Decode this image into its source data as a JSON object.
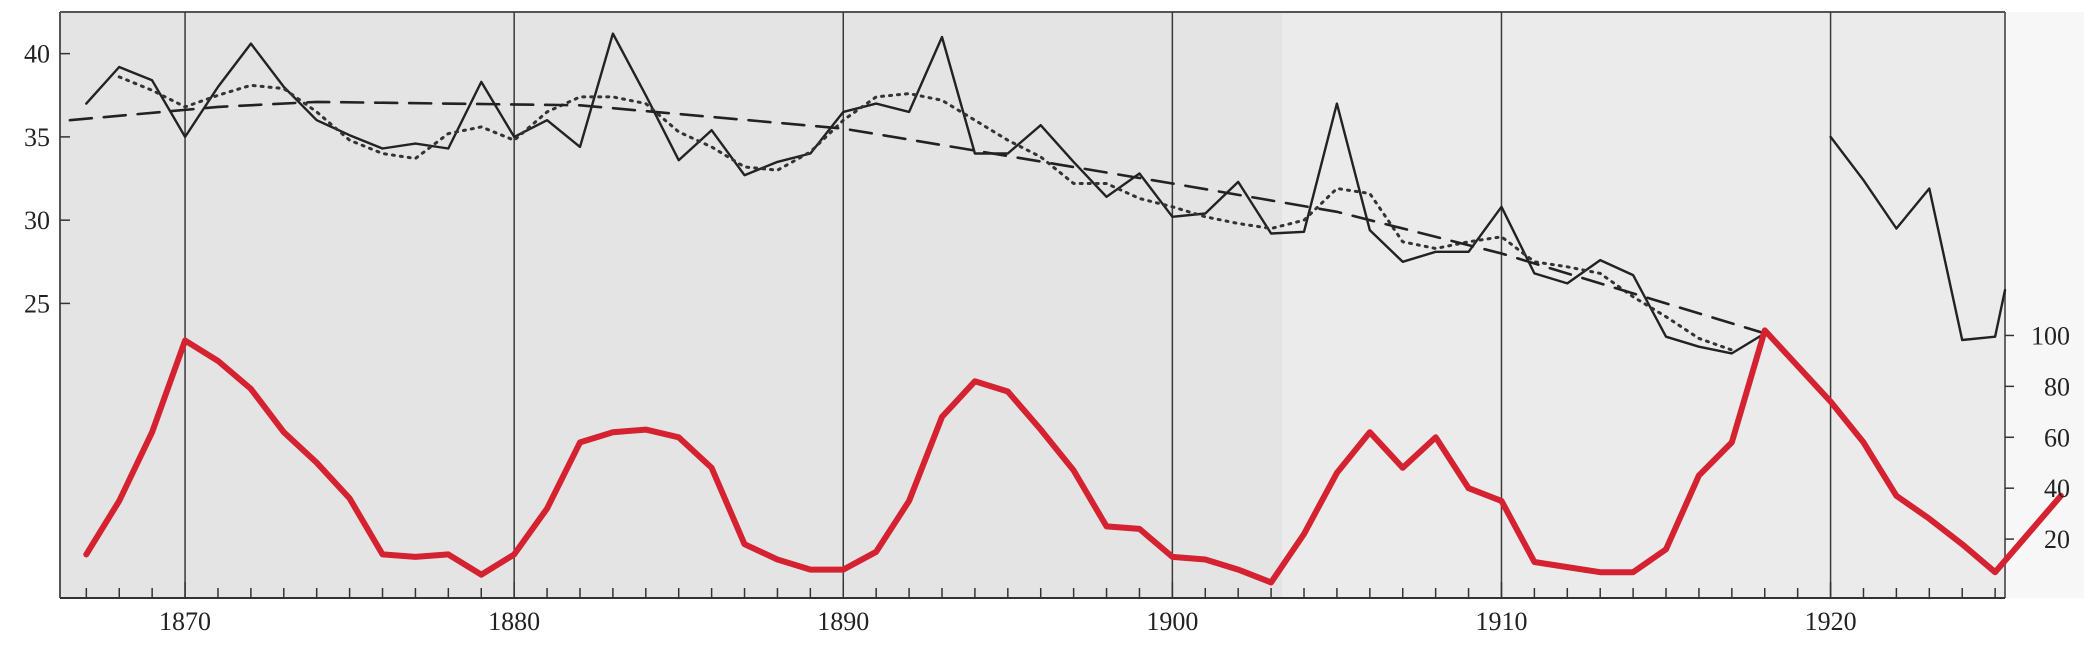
{
  "chart_data": {
    "type": "line",
    "title": "",
    "xlabel": "",
    "ylabel": "",
    "xlim": [
      1866.2,
      1925.3
    ],
    "grid": "vertical lines every 10 years",
    "x_ticks": [
      "1870",
      "1880",
      "1890",
      "1900",
      "1910",
      "1920"
    ],
    "upper_panel": {
      "ylim": [
        19.5,
        42.5
      ],
      "y_ticks": [
        "25",
        "30",
        "35",
        "40"
      ],
      "series": [
        {
          "style": "solid",
          "color": "#222222",
          "segments": [
            [
              [
                1867,
                37
              ],
              [
                1868,
                39.2
              ],
              [
                1869,
                38.4
              ],
              [
                1870,
                35
              ],
              [
                1871,
                38
              ],
              [
                1872,
                40.6
              ],
              [
                1873,
                38
              ],
              [
                1874,
                36
              ],
              [
                1875,
                35.1
              ],
              [
                1876,
                34.3
              ],
              [
                1877,
                34.6
              ],
              [
                1878,
                34.3
              ],
              [
                1879,
                38.3
              ],
              [
                1880,
                35
              ],
              [
                1881,
                36
              ],
              [
                1882,
                34.4
              ],
              [
                1883,
                41.2
              ],
              [
                1884,
                37.5
              ],
              [
                1885,
                33.6
              ],
              [
                1886,
                35.4
              ],
              [
                1887,
                32.7
              ],
              [
                1888,
                33.5
              ],
              [
                1889,
                34
              ],
              [
                1890,
                36.5
              ],
              [
                1891,
                37
              ],
              [
                1892,
                36.5
              ],
              [
                1893,
                41
              ],
              [
                1894,
                34
              ],
              [
                1895,
                34
              ],
              [
                1896,
                35.7
              ],
              [
                1897,
                33.5
              ],
              [
                1898,
                31.4
              ],
              [
                1899,
                32.8
              ],
              [
                1900,
                30.2
              ],
              [
                1901,
                30.4
              ],
              [
                1902,
                32.3
              ],
              [
                1903,
                29.2
              ],
              [
                1904,
                29.3
              ],
              [
                1905,
                37
              ],
              [
                1906,
                29.4
              ],
              [
                1907,
                27.5
              ],
              [
                1908,
                28.1
              ],
              [
                1909,
                28.1
              ],
              [
                1910,
                30.8
              ],
              [
                1911,
                26.8
              ],
              [
                1912,
                26.2
              ],
              [
                1913,
                27.6
              ],
              [
                1914,
                26.7
              ],
              [
                1915,
                23
              ],
              [
                1916,
                22.4
              ],
              [
                1917,
                22
              ],
              [
                1918,
                23.2
              ]
            ],
            [
              [
                1920,
                35
              ],
              [
                1921,
                32.4
              ],
              [
                1922,
                29.5
              ],
              [
                1923,
                31.9
              ],
              [
                1924,
                22.8
              ],
              [
                1925,
                23
              ],
              [
                1925.3,
                25.8
              ]
            ]
          ]
        },
        {
          "style": "dotted",
          "color": "#333333",
          "segments": [
            [
              [
                1868,
                38.6
              ],
              [
                1869,
                37.8
              ],
              [
                1870,
                36.8
              ],
              [
                1871,
                37.5
              ],
              [
                1872,
                38.1
              ],
              [
                1873,
                37.9
              ],
              [
                1874,
                36.5
              ],
              [
                1875,
                34.8
              ],
              [
                1876,
                34
              ],
              [
                1877,
                33.7
              ],
              [
                1878,
                35.2
              ],
              [
                1879,
                35.6
              ],
              [
                1880,
                34.8
              ],
              [
                1881,
                36.5
              ],
              [
                1882,
                37.4
              ],
              [
                1883,
                37.4
              ],
              [
                1884,
                37
              ],
              [
                1885,
                35.3
              ],
              [
                1886,
                34.4
              ],
              [
                1887,
                33.2
              ],
              [
                1888,
                33
              ],
              [
                1889,
                34.1
              ],
              [
                1890,
                36
              ],
              [
                1891,
                37.4
              ],
              [
                1892,
                37.6
              ],
              [
                1893,
                37.2
              ],
              [
                1894,
                36
              ],
              [
                1895,
                34.8
              ],
              [
                1896,
                33.8
              ],
              [
                1897,
                32.2
              ],
              [
                1898,
                32.2
              ],
              [
                1899,
                31.3
              ],
              [
                1900,
                30.8
              ],
              [
                1901,
                30.2
              ],
              [
                1902,
                29.8
              ],
              [
                1903,
                29.5
              ],
              [
                1904,
                30
              ],
              [
                1905,
                31.9
              ],
              [
                1906,
                31.6
              ],
              [
                1907,
                28.7
              ],
              [
                1908,
                28.3
              ],
              [
                1909,
                28.7
              ],
              [
                1910,
                29
              ],
              [
                1911,
                27.5
              ],
              [
                1912,
                27.2
              ],
              [
                1913,
                26.8
              ],
              [
                1914,
                25.4
              ],
              [
                1915,
                24.2
              ],
              [
                1916,
                22.9
              ],
              [
                1917,
                22.2
              ]
            ]
          ]
        },
        {
          "style": "dashed",
          "color": "#222222",
          "segments": [
            [
              [
                1866.5,
                36
              ],
              [
                1871,
                36.8
              ],
              [
                1874,
                37.1
              ],
              [
                1882,
                36.9
              ],
              [
                1890,
                35.5
              ],
              [
                1900,
                32.2
              ],
              [
                1905,
                30.5
              ],
              [
                1910,
                28
              ],
              [
                1918,
                23.2
              ]
            ]
          ]
        }
      ]
    },
    "lower_panel": {
      "ylim": [
        0,
        110
      ],
      "y_ticks": [
        "20",
        "40",
        "60",
        "80",
        "100"
      ],
      "series": [
        {
          "style": "solid-thick",
          "color": "#d42231",
          "segments": [
            [
              [
                1867,
                14
              ],
              [
                1868,
                35
              ],
              [
                1869,
                62
              ],
              [
                1870,
                98
              ],
              [
                1871,
                90
              ],
              [
                1872,
                79
              ],
              [
                1873,
                62
              ],
              [
                1874,
                50
              ],
              [
                1875,
                36
              ],
              [
                1876,
                14
              ],
              [
                1877,
                13
              ],
              [
                1878,
                14
              ],
              [
                1879,
                6
              ],
              [
                1880,
                14
              ],
              [
                1881,
                32
              ],
              [
                1882,
                58
              ],
              [
                1883,
                62
              ],
              [
                1884,
                63
              ],
              [
                1885,
                60
              ],
              [
                1886,
                48
              ],
              [
                1887,
                18
              ],
              [
                1888,
                12
              ],
              [
                1889,
                8
              ],
              [
                1890,
                8
              ],
              [
                1891,
                15
              ],
              [
                1892,
                35
              ],
              [
                1893,
                68
              ],
              [
                1894,
                82
              ],
              [
                1895,
                78
              ],
              [
                1896,
                63
              ],
              [
                1897,
                47
              ],
              [
                1898,
                25
              ],
              [
                1899,
                24
              ],
              [
                1900,
                13
              ],
              [
                1901,
                12
              ],
              [
                1902,
                8
              ],
              [
                1903,
                3
              ],
              [
                1904,
                22
              ],
              [
                1905,
                46
              ],
              [
                1906,
                62
              ],
              [
                1907,
                48
              ],
              [
                1908,
                60
              ],
              [
                1909,
                40
              ],
              [
                1910,
                35
              ],
              [
                1911,
                11
              ],
              [
                1912,
                9
              ],
              [
                1913,
                7
              ],
              [
                1914,
                7
              ],
              [
                1915,
                16
              ],
              [
                1916,
                45
              ],
              [
                1917,
                58
              ],
              [
                1918,
                102
              ],
              [
                1919,
                88
              ],
              [
                1920,
                74
              ],
              [
                1921,
                58
              ],
              [
                1922,
                37
              ],
              [
                1923,
                28
              ],
              [
                1924,
                18
              ],
              [
                1925,
                7
              ],
              [
                1926,
                22
              ],
              [
                1927,
                37
              ]
            ]
          ]
        }
      ]
    }
  }
}
